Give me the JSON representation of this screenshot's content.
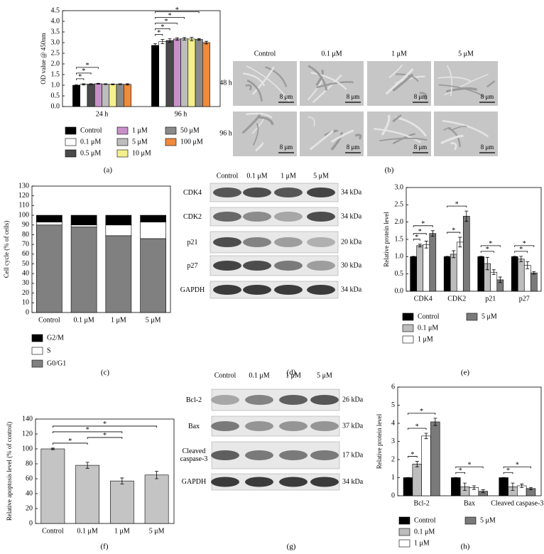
{
  "panel_labels": [
    "(a)",
    "(b)",
    "(c)",
    "(d)",
    "(e)",
    "(f)",
    "(g)",
    "(h)"
  ],
  "chart_data": [
    {
      "type": "bar",
      "ylabel": "OD value @ 450nm",
      "categories": [
        "24 h",
        "96 h"
      ],
      "ylim": [
        0,
        4.5
      ],
      "yticks": [
        {
          "value": 0,
          "label": "0.0"
        },
        {
          "value": 0.5,
          "label": "0.5"
        },
        {
          "value": 1,
          "label": "1.0"
        },
        {
          "value": 1.5,
          "label": "1.5"
        },
        {
          "value": 2,
          "label": "2.0"
        },
        {
          "value": 2.5,
          "label": "2.5"
        },
        {
          "value": 3,
          "label": "3.0"
        },
        {
          "value": 3.5,
          "label": "3.5"
        },
        {
          "value": 4,
          "label": "4.0"
        },
        {
          "value": 4.5,
          "label": "4.5"
        }
      ],
      "series": [
        {
          "name": "Control",
          "color": "#000000",
          "values": [
            1.0,
            2.87
          ],
          "errors": [
            0.02,
            0.08
          ]
        },
        {
          "name": "0.1 μM",
          "color": "#ffffff",
          "values": [
            1.04,
            3.05
          ],
          "errors": [
            0.03,
            0.1
          ]
        },
        {
          "name": "0.5 μM",
          "color": "#4a4a4a",
          "values": [
            1.05,
            3.1
          ],
          "errors": [
            0.02,
            0.08
          ]
        },
        {
          "name": "1 μM",
          "color": "#c890c8",
          "values": [
            1.07,
            3.17
          ],
          "errors": [
            0.02,
            0.06
          ]
        },
        {
          "name": "5 μM",
          "color": "#bdbdbd",
          "values": [
            1.05,
            3.18
          ],
          "errors": [
            0.02,
            0.06
          ]
        },
        {
          "name": "10 μM",
          "color": "#f4f08c",
          "values": [
            1.04,
            3.17
          ],
          "errors": [
            0.02,
            0.08
          ]
        },
        {
          "name": "50 μM",
          "color": "#8a8a8a",
          "values": [
            1.05,
            3.15
          ],
          "errors": [
            0.02,
            0.04
          ]
        },
        {
          "name": "100 μM",
          "color": "#f08a3c",
          "values": [
            1.04,
            3.0
          ],
          "errors": [
            0.03,
            0.06
          ]
        }
      ],
      "significance": [
        {
          "category": "24 h",
          "from": "Control",
          "to": "0.1 μM",
          "label": "*"
        },
        {
          "category": "24 h",
          "from": "Control",
          "to": "0.5 μM",
          "label": "*"
        },
        {
          "category": "24 h",
          "from": "Control",
          "to": "1 μM",
          "label": "*"
        },
        {
          "category": "96 h",
          "from": "Control",
          "to": "0.1 μM",
          "label": "*"
        },
        {
          "category": "96 h",
          "from": "Control",
          "to": "0.5 μM",
          "label": "*"
        },
        {
          "category": "96 h",
          "from": "Control",
          "to": "1 μM",
          "label": "*"
        },
        {
          "category": "96 h",
          "from": "Control",
          "to": "5 μM",
          "label": "*"
        },
        {
          "category": "96 h",
          "from": "Control",
          "to": "50 μM",
          "label": "*"
        }
      ],
      "legend": "bottom"
    },
    {
      "type": "stacked_bar",
      "ylabel": "Cell cycle (% of cells)",
      "categories": [
        "Control",
        "0.1 μM",
        "1 μM",
        "5 μM"
      ],
      "ylim": [
        0,
        130
      ],
      "yticks": [
        0,
        10,
        20,
        30,
        40,
        50,
        60,
        70,
        80,
        90,
        100,
        110,
        120,
        130
      ],
      "series": [
        {
          "name": "G0/G1",
          "color": "#808080",
          "values": [
            90,
            88,
            79,
            76
          ]
        },
        {
          "name": "S",
          "color": "#ffffff",
          "values": [
            3,
            2,
            11,
            17
          ]
        },
        {
          "name": "G2/M",
          "color": "#000000",
          "values": [
            7,
            10,
            10,
            7
          ]
        }
      ],
      "legend": "bottom"
    },
    {
      "type": "bar",
      "ylabel": "Relative protein level",
      "categories": [
        "CDK4",
        "CDK2",
        "p21",
        "p27"
      ],
      "ylim": [
        0,
        3
      ],
      "yticks": [
        {
          "value": 0,
          "label": "0.0"
        },
        {
          "value": 0.5,
          "label": "0.5"
        },
        {
          "value": 1,
          "label": "1.0"
        },
        {
          "value": 1.5,
          "label": "1.5"
        },
        {
          "value": 2,
          "label": "2.0"
        },
        {
          "value": 2.5,
          "label": "2.5"
        },
        {
          "value": 3,
          "label": "3.0"
        }
      ],
      "series": [
        {
          "name": "Control",
          "color": "#000000",
          "values": [
            1,
            1,
            1,
            1
          ],
          "errors": [
            0.01,
            0.01,
            0.01,
            0.01
          ]
        },
        {
          "name": "0.1 μM",
          "color": "#bdbdbd",
          "values": [
            1.32,
            1.07,
            0.8,
            0.93
          ],
          "errors": [
            0.04,
            0.1,
            0.18,
            0.08
          ]
        },
        {
          "name": "1 μM",
          "color": "#ffffff",
          "values": [
            1.35,
            1.42,
            0.55,
            0.75
          ],
          "errors": [
            0.1,
            0.14,
            0.07,
            0.1
          ]
        },
        {
          "name": "5 μM",
          "color": "#7a7a7a",
          "values": [
            1.67,
            2.17,
            0.33,
            0.53
          ],
          "errors": [
            0.08,
            0.15,
            0.08,
            0.04
          ]
        }
      ],
      "significance": [
        {
          "category": "CDK4",
          "from": "Control",
          "to": "0.1 μM",
          "label": "*"
        },
        {
          "category": "CDK4",
          "from": "Control",
          "to": "1 μM",
          "label": "*"
        },
        {
          "category": "CDK4",
          "from": "Control",
          "to": "5 μM",
          "label": "*"
        },
        {
          "category": "CDK2",
          "from": "Control",
          "to": "1 μM",
          "label": "*"
        },
        {
          "category": "CDK2",
          "from": "Control",
          "to": "5 μM",
          "label": "*"
        },
        {
          "category": "p21",
          "from": "Control",
          "to": "1 μM",
          "label": "*"
        },
        {
          "category": "p21",
          "from": "Control",
          "to": "5 μM",
          "label": "*"
        },
        {
          "category": "p27",
          "from": "Control",
          "to": "1 μM",
          "label": "*"
        },
        {
          "category": "p27",
          "from": "Control",
          "to": "5 μM",
          "label": "*"
        }
      ],
      "legend": "bottom"
    },
    {
      "type": "bar",
      "ylabel": "Relative apoptosis level (% of control)",
      "categories": [
        "Control",
        "0.1 μM",
        "1 μM",
        "5 μM"
      ],
      "ylim": [
        0,
        140
      ],
      "yticks": [
        0,
        20,
        40,
        60,
        80,
        100,
        120,
        140
      ],
      "color": "#c4c4c4",
      "values": [
        100,
        78,
        57,
        65
      ],
      "errors": [
        1,
        4,
        4,
        5
      ],
      "significance": [
        {
          "from": "Control",
          "to": "0.1 μM",
          "label": "*"
        },
        {
          "from": "0.1 μM",
          "to": "1 μM",
          "label": "*"
        },
        {
          "from": "Control",
          "to": "1 μM",
          "label": "*"
        },
        {
          "from": "Control",
          "to": "5 μM",
          "label": "*"
        }
      ]
    },
    {
      "type": "bar",
      "ylabel": "Relative protein level",
      "categories": [
        "Bcl-2",
        "Bax",
        "Cleaved caspase-3"
      ],
      "ylim": [
        0,
        6
      ],
      "yticks": [
        0,
        1,
        2,
        3,
        4,
        5,
        6
      ],
      "series": [
        {
          "name": "Control",
          "color": "#000000",
          "values": [
            1,
            1,
            1
          ],
          "errors": [
            0.01,
            0.01,
            0.01
          ]
        },
        {
          "name": "0.1 μM",
          "color": "#bdbdbd",
          "values": [
            1.75,
            0.5,
            0.5
          ],
          "errors": [
            0.15,
            0.2,
            0.2
          ]
        },
        {
          "name": "1 μM",
          "color": "#ffffff",
          "values": [
            3.3,
            0.45,
            0.55
          ],
          "errors": [
            0.15,
            0.1,
            0.1
          ]
        },
        {
          "name": "5 μM",
          "color": "#7a7a7a",
          "values": [
            4.08,
            0.25,
            0.4
          ],
          "errors": [
            0.2,
            0.08,
            0.06
          ]
        }
      ],
      "significance": [
        {
          "category": "Bcl-2",
          "from": "Control",
          "to": "0.1 μM",
          "label": "*"
        },
        {
          "category": "Bcl-2",
          "from": "Control",
          "to": "1 μM",
          "label": "*"
        },
        {
          "category": "Bcl-2",
          "from": "Control",
          "to": "5 μM",
          "label": "*"
        },
        {
          "category": "Bax",
          "from": "Control",
          "to": "0.1 μM",
          "label": "*"
        },
        {
          "category": "Bax",
          "from": "Control",
          "to": "5 μM",
          "label": "*"
        },
        {
          "category": "Cleaved caspase-3",
          "from": "Control",
          "to": "0.1 μM",
          "label": "*"
        },
        {
          "category": "Cleaved caspase-3",
          "from": "Control",
          "to": "5 μM",
          "label": "*"
        }
      ],
      "legend": "bottom"
    }
  ],
  "micrographs": {
    "columns": [
      "Control",
      "0.1 μM",
      "1 μM",
      "5 μM"
    ],
    "rows": [
      "48 h",
      "96 h"
    ],
    "scale_bar": "8 μm"
  },
  "blots": [
    {
      "columns": [
        "Control",
        "0.1 μM",
        "1 μM",
        "5 μM"
      ],
      "rows": [
        {
          "name": "CDK4",
          "size": "34 kDa"
        },
        {
          "name": "CDK2",
          "size": "34 kDa"
        },
        {
          "name": "p21",
          "size": "20 kDa"
        },
        {
          "name": "p27",
          "size": "30 kDa"
        },
        {
          "name": "GAPDH",
          "size": "34 kDa"
        }
      ]
    },
    {
      "columns": [
        "Control",
        "0.1 μM",
        "1 μM",
        "5 μM"
      ],
      "rows": [
        {
          "name": "Bcl-2",
          "size": "26 kDa"
        },
        {
          "name": "Bax",
          "size": "37 kDa"
        },
        {
          "name": "Cleaved caspase-3",
          "size": "17 kDa"
        },
        {
          "name": "GAPDH",
          "size": "34 kDa"
        }
      ]
    }
  ]
}
